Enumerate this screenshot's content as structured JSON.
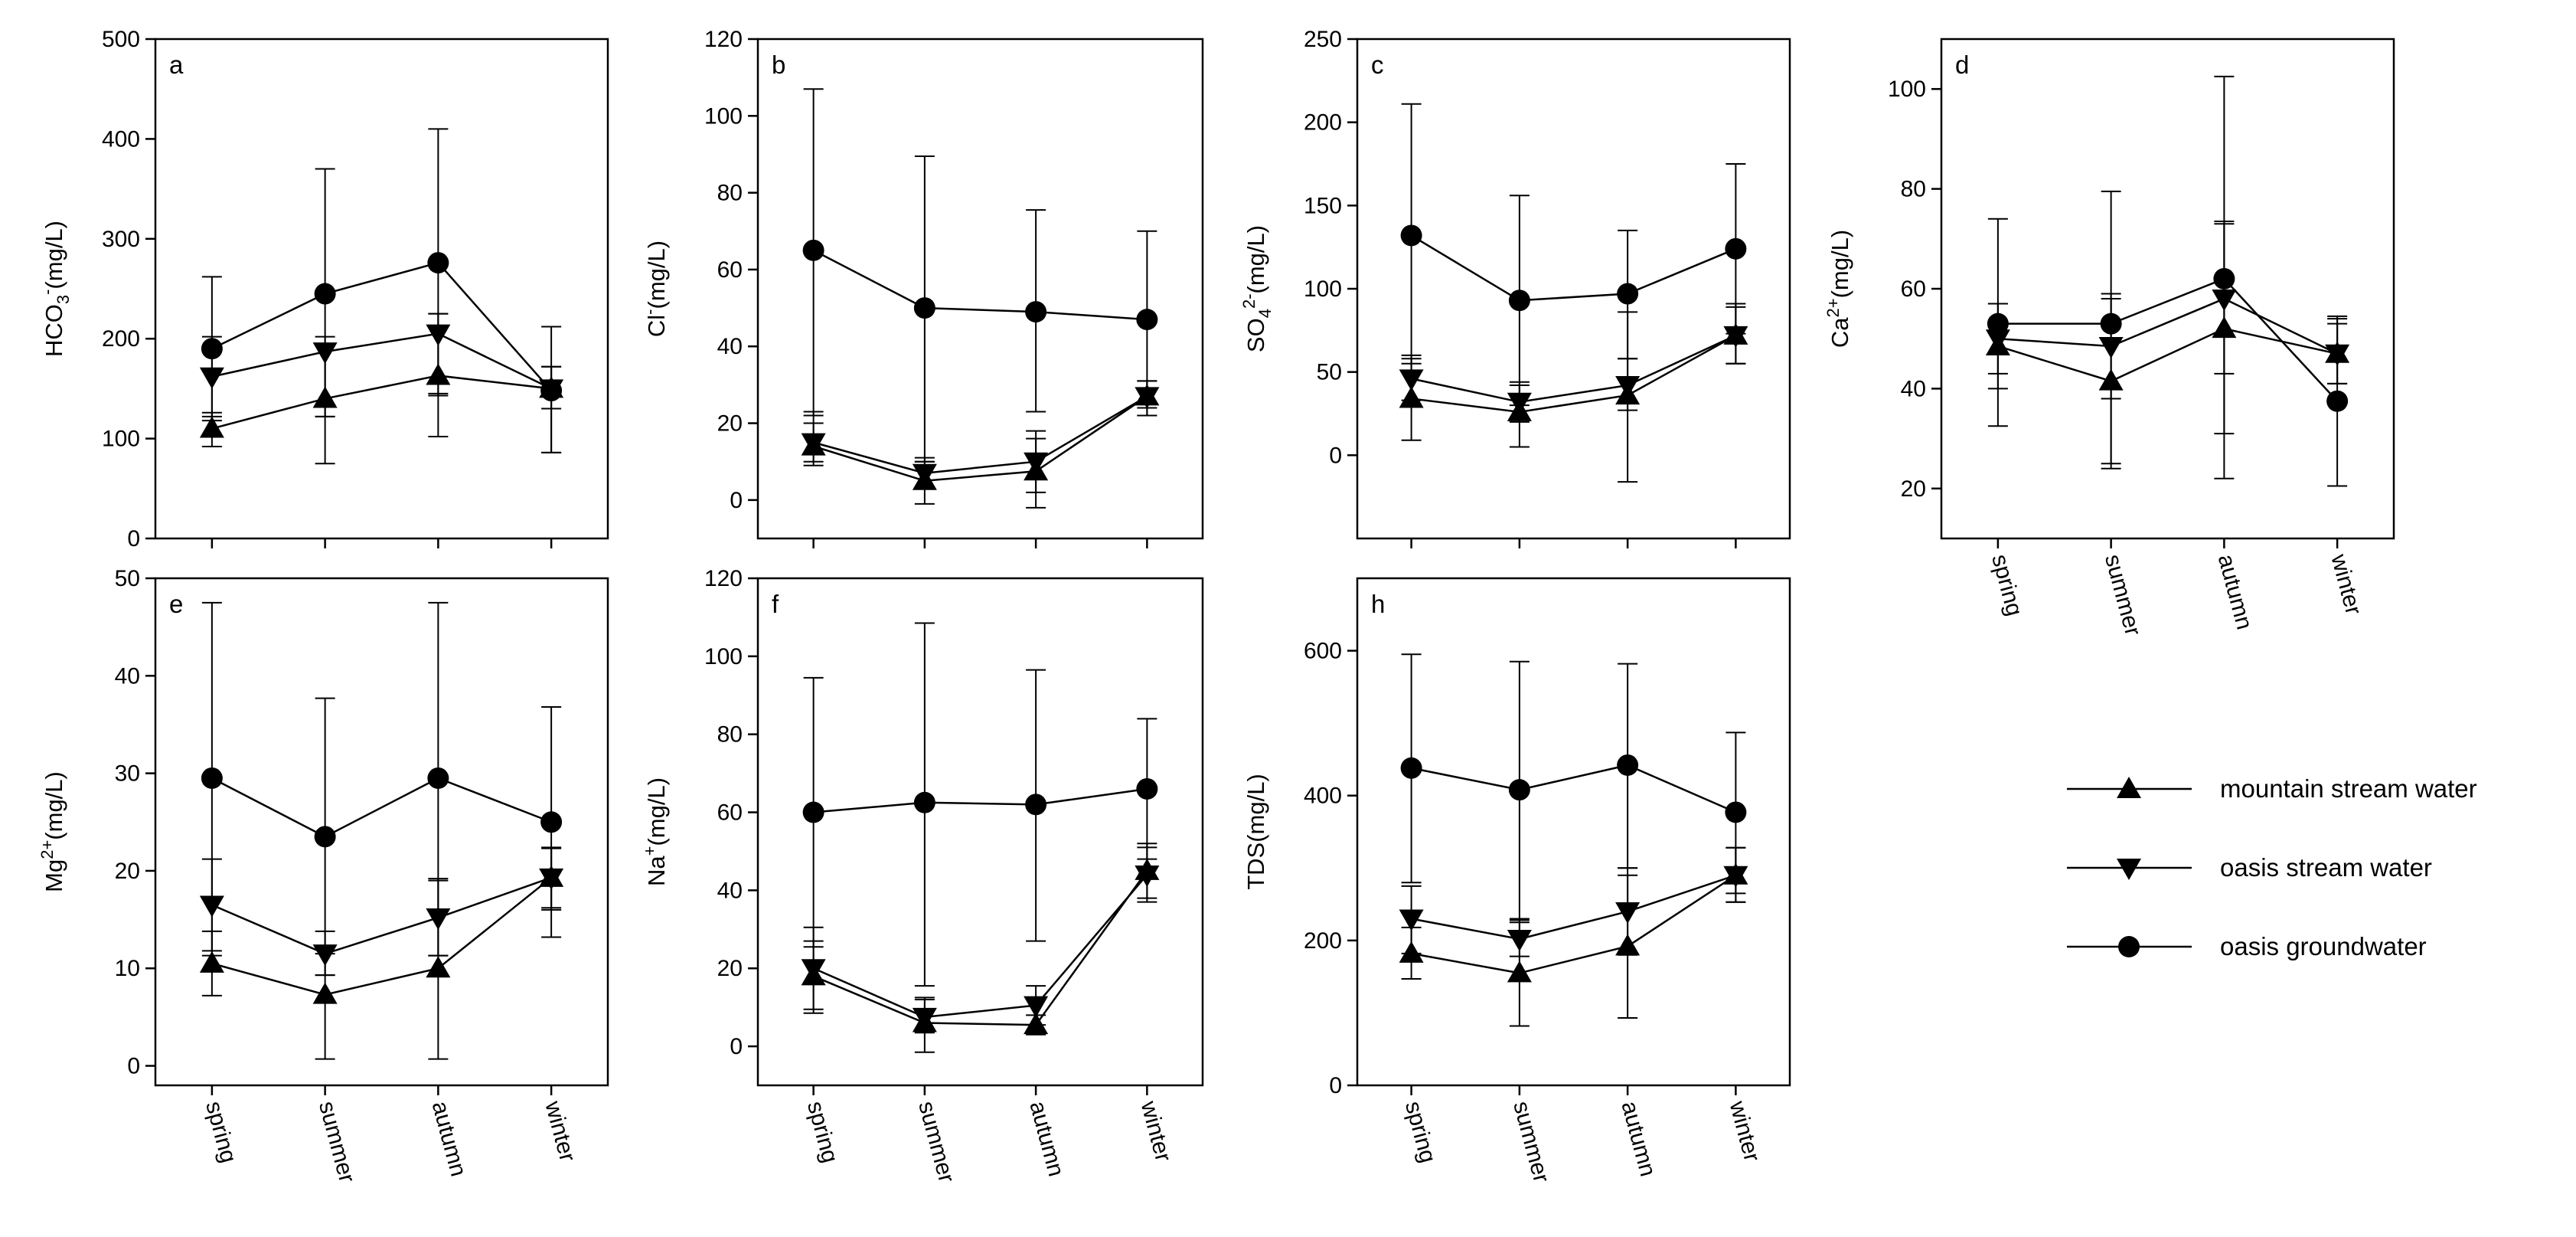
{
  "figure": {
    "categories": [
      "spring",
      "summer",
      "autumn",
      "winter"
    ],
    "legend": [
      {
        "name": "mountain stream water",
        "marker": "triangle-up"
      },
      {
        "name": "oasis stream water",
        "marker": "triangle-down"
      },
      {
        "name": "oasis groundwater",
        "marker": "circle"
      }
    ]
  },
  "chart_data": [
    {
      "id": "a",
      "panel_label": "a",
      "type": "line",
      "ylabel": "HCO3- (mg/L)",
      "ylabel_main": "HCO",
      "ylabel_sub": "3",
      "ylabel_sup": "-",
      "ylabel_unit": "(mg/L)",
      "categories": [
        "spring",
        "summer",
        "autumn",
        "winter"
      ],
      "ylim": [
        0,
        500
      ],
      "yticks": [
        0,
        100,
        200,
        300,
        400,
        500
      ],
      "show_xticklabels": false,
      "series": [
        {
          "name": "mountain stream water",
          "values": [
            110,
            140,
            163,
            150
          ],
          "err_low": [
            92,
            122,
            143,
            130
          ],
          "err_high": [
            126,
            195,
            225,
            172
          ]
        },
        {
          "name": "oasis stream water",
          "values": [
            162,
            187,
            205,
            150
          ],
          "err_low": [
            122,
            122,
            102,
            86
          ],
          "err_high": [
            202,
            202,
            225,
            172
          ]
        },
        {
          "name": "oasis groundwater",
          "values": [
            190,
            245,
            276,
            148
          ],
          "err_low": [
            118,
            75,
            145,
            86
          ],
          "err_high": [
            262,
            370,
            410,
            212
          ]
        }
      ]
    },
    {
      "id": "b",
      "panel_label": "b",
      "type": "line",
      "ylabel": "Cl- (mg/L)",
      "ylabel_main": "Cl",
      "ylabel_sub": "",
      "ylabel_sup": "-",
      "ylabel_unit": "(mg/L)",
      "categories": [
        "spring",
        "summer",
        "autumn",
        "winter"
      ],
      "ylim": [
        -10,
        120
      ],
      "yticks": [
        0,
        20,
        40,
        60,
        80,
        100,
        120
      ],
      "show_xticklabels": false,
      "series": [
        {
          "name": "mountain stream water",
          "values": [
            14,
            5,
            7.5,
            27
          ],
          "err_low": [
            9,
            -1,
            -2,
            22
          ],
          "err_high": [
            20,
            10,
            16,
            31
          ]
        },
        {
          "name": "oasis stream water",
          "values": [
            15,
            7,
            10,
            27
          ],
          "err_low": [
            10,
            3,
            2,
            22
          ],
          "err_high": [
            23,
            11,
            18,
            31
          ]
        },
        {
          "name": "oasis groundwater",
          "values": [
            65,
            50,
            49,
            47
          ],
          "err_low": [
            22,
            10,
            23,
            24
          ],
          "err_high": [
            107,
            89.5,
            75.5,
            70
          ]
        }
      ]
    },
    {
      "id": "c",
      "panel_label": "c",
      "type": "line",
      "ylabel": "SO4 2- (mg/L)",
      "ylabel_main": "SO",
      "ylabel_sub": "4",
      "ylabel_sup": "2-",
      "ylabel_unit": "(mg/L)",
      "categories": [
        "spring",
        "summer",
        "autumn",
        "winter"
      ],
      "ylim": [
        -50,
        250
      ],
      "yticks": [
        0,
        50,
        100,
        150,
        200,
        250
      ],
      "show_xticklabels": false,
      "series": [
        {
          "name": "mountain stream water",
          "values": [
            34,
            26,
            36,
            72
          ],
          "err_low": [
            9,
            5,
            -16,
            55
          ],
          "err_high": [
            58,
            42,
            86,
            89
          ]
        },
        {
          "name": "oasis stream water",
          "values": [
            46,
            32,
            42,
            72
          ],
          "err_low": [
            33,
            20,
            27,
            55
          ],
          "err_high": [
            60,
            44,
            58,
            91
          ]
        },
        {
          "name": "oasis groundwater",
          "values": [
            132,
            93,
            97,
            124
          ],
          "err_low": [
            55,
            30,
            58,
            73
          ],
          "err_high": [
            211,
            156,
            135,
            175
          ]
        }
      ]
    },
    {
      "id": "d",
      "panel_label": "d",
      "type": "line",
      "ylabel": "Ca2+ (mg/L)",
      "ylabel_main": "Ca",
      "ylabel_sub": "",
      "ylabel_sup": "2+",
      "ylabel_unit": "(mg/L)",
      "categories": [
        "spring",
        "summer",
        "autumn",
        "winter"
      ],
      "ylim": [
        10,
        110
      ],
      "yticks": [
        20,
        40,
        60,
        80,
        100
      ],
      "show_xticklabels": true,
      "series": [
        {
          "name": "mountain stream water",
          "values": [
            48.5,
            41.5,
            52,
            47
          ],
          "err_low": [
            40,
            25,
            31,
            41
          ],
          "err_high": [
            57,
            58,
            73,
            53
          ]
        },
        {
          "name": "oasis stream water",
          "values": [
            50,
            48.5,
            58,
            47
          ],
          "err_low": [
            43,
            38,
            43,
            41
          ],
          "err_high": [
            57,
            59,
            73.5,
            54
          ]
        },
        {
          "name": "oasis groundwater",
          "values": [
            53,
            53,
            62,
            37.5
          ],
          "err_low": [
            32.5,
            24,
            22,
            20.5
          ],
          "err_high": [
            74,
            79.5,
            102.5,
            54.5
          ]
        }
      ]
    },
    {
      "id": "e",
      "panel_label": "e",
      "type": "line",
      "ylabel": "Mg2+ (mg/L)",
      "ylabel_main": "Mg",
      "ylabel_sub": "",
      "ylabel_sup": "2+",
      "ylabel_unit": "(mg/L)",
      "categories": [
        "spring",
        "summer",
        "autumn",
        "winter"
      ],
      "ylim": [
        -2,
        50
      ],
      "yticks": [
        0,
        10,
        20,
        30,
        40,
        50
      ],
      "show_xticklabels": true,
      "series": [
        {
          "name": "mountain stream water",
          "values": [
            10.5,
            7.3,
            10,
            19.3
          ],
          "err_low": [
            7.2,
            0.7,
            0.7,
            16
          ],
          "err_high": [
            13.8,
            11.5,
            19,
            22.3
          ]
        },
        {
          "name": "oasis stream water",
          "values": [
            16.5,
            11.5,
            15.2,
            19.3
          ],
          "err_low": [
            11.8,
            9.3,
            11.3,
            16.2
          ],
          "err_high": [
            21.2,
            13.8,
            19.2,
            22.4
          ]
        },
        {
          "name": "oasis groundwater",
          "values": [
            29.5,
            23.5,
            29.5,
            25
          ],
          "err_low": [
            11.3,
            9.3,
            11.3,
            13.2
          ],
          "err_high": [
            47.5,
            37.7,
            47.5,
            36.8
          ]
        }
      ]
    },
    {
      "id": "f",
      "panel_label": "f",
      "type": "line",
      "ylabel": "Na+ (mg/L)",
      "ylabel_main": "Na",
      "ylabel_sub": "",
      "ylabel_sup": "+",
      "ylabel_unit": "(mg/L)",
      "categories": [
        "spring",
        "summer",
        "autumn",
        "winter"
      ],
      "ylim": [
        -10,
        120
      ],
      "yticks": [
        0,
        20,
        40,
        60,
        80,
        100,
        120
      ],
      "show_xticklabels": true,
      "series": [
        {
          "name": "mountain stream water",
          "values": [
            18,
            6,
            5.5,
            45
          ],
          "err_low": [
            8.5,
            -1.5,
            3,
            38
          ],
          "err_high": [
            27,
            12,
            8,
            51
          ]
        },
        {
          "name": "oasis stream water",
          "values": [
            20,
            7.5,
            10.5,
            44
          ],
          "err_low": [
            9.5,
            3.5,
            5.5,
            37
          ],
          "err_high": [
            30.5,
            12.5,
            15.5,
            52
          ]
        },
        {
          "name": "oasis groundwater",
          "values": [
            60,
            62.5,
            62,
            66
          ],
          "err_low": [
            25.5,
            15.5,
            27,
            48
          ],
          "err_high": [
            94.5,
            108.5,
            96.5,
            84
          ]
        }
      ]
    },
    {
      "id": "h",
      "panel_label": "h",
      "type": "line",
      "ylabel": "TDS (mg/L)",
      "ylabel_main": "TDS",
      "ylabel_sub": "",
      "ylabel_sup": "",
      "ylabel_unit": "(mg/L)",
      "categories": [
        "spring",
        "summer",
        "autumn",
        "winter"
      ],
      "ylim": [
        0,
        700
      ],
      "yticks": [
        0,
        200,
        400,
        600
      ],
      "show_xticklabels": true,
      "series": [
        {
          "name": "mountain stream water",
          "values": [
            182,
            155,
            192,
            290
          ],
          "err_low": [
            147,
            82,
            93,
            253
          ],
          "err_high": [
            218,
            225,
            290,
            328
          ]
        },
        {
          "name": "oasis stream water",
          "values": [
            230,
            202,
            240,
            290
          ],
          "err_low": [
            182,
            178,
            180,
            253
          ],
          "err_high": [
            275,
            228,
            300,
            328
          ]
        },
        {
          "name": "oasis groundwater",
          "values": [
            438,
            408,
            442,
            377
          ],
          "err_low": [
            280,
            230,
            300,
            265
          ],
          "err_high": [
            595,
            585,
            582,
            487
          ]
        }
      ]
    }
  ]
}
